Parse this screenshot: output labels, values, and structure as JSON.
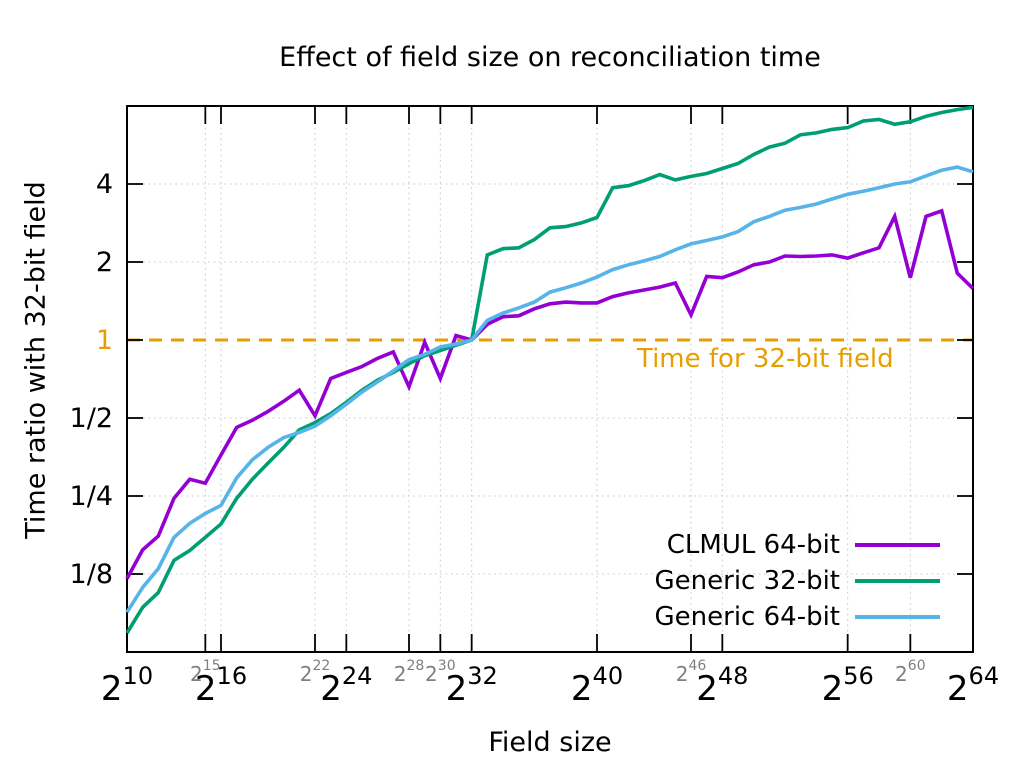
{
  "title": "Effect of field size on reconciliation time",
  "xlabel": "Field size",
  "ylabel": "Time ratio with 32-bit field",
  "chart_data": {
    "type": "line",
    "x_tick_base": "2",
    "x_exponents": [
      10,
      11,
      12,
      13,
      14,
      15,
      16,
      17,
      18,
      19,
      20,
      21,
      22,
      23,
      24,
      25,
      26,
      27,
      28,
      29,
      30,
      31,
      32,
      33,
      34,
      35,
      36,
      37,
      38,
      39,
      40,
      41,
      42,
      43,
      44,
      45,
      46,
      47,
      48,
      49,
      50,
      51,
      52,
      53,
      54,
      55,
      56,
      57,
      58,
      59,
      60,
      61,
      62,
      63,
      64
    ],
    "x_major_ticks": [
      10,
      16,
      24,
      32,
      40,
      48,
      56,
      64
    ],
    "x_minor_ticks": [
      15,
      22,
      28,
      30,
      46,
      60
    ],
    "xlim": [
      10,
      64
    ],
    "ylim": [
      0.0625,
      8
    ],
    "y_log": true,
    "grid": true,
    "legend_position": "inside-bottom-right",
    "y_ticks": [
      {
        "value": 4,
        "label": "4"
      },
      {
        "value": 2,
        "label": "2"
      },
      {
        "value": 1,
        "label": "1",
        "highlight": true
      },
      {
        "value": 0.5,
        "label": "1/2"
      },
      {
        "value": 0.25,
        "label": "1/4"
      },
      {
        "value": 0.125,
        "label": "1/8"
      }
    ],
    "reference_line": {
      "value": 1,
      "label": "Time for 32-bit field",
      "color": "#E69F00",
      "style": "dashed"
    },
    "series": [
      {
        "name": "CLMUL 64-bit",
        "color": "#9400D3",
        "values": [
          0.12,
          0.155,
          0.175,
          0.245,
          0.29,
          0.28,
          0.36,
          0.46,
          0.49,
          0.53,
          0.58,
          0.64,
          0.51,
          0.71,
          0.75,
          0.79,
          0.85,
          0.9,
          0.66,
          0.98,
          0.71,
          1.04,
          1.0,
          1.15,
          1.23,
          1.24,
          1.32,
          1.38,
          1.4,
          1.39,
          1.39,
          1.47,
          1.52,
          1.56,
          1.6,
          1.66,
          1.25,
          1.76,
          1.74,
          1.83,
          1.95,
          2.0,
          2.11,
          2.1,
          2.11,
          2.13,
          2.07,
          2.17,
          2.27,
          3.0,
          1.74,
          3.0,
          3.15,
          1.81,
          1.58
        ]
      },
      {
        "name": "Generic 32-bit",
        "color": "#009E73",
        "values": [
          0.074,
          0.093,
          0.106,
          0.141,
          0.154,
          0.173,
          0.195,
          0.245,
          0.29,
          0.335,
          0.385,
          0.45,
          0.48,
          0.52,
          0.575,
          0.64,
          0.7,
          0.75,
          0.81,
          0.87,
          0.91,
          0.955,
          1.0,
          2.13,
          2.25,
          2.27,
          2.44,
          2.71,
          2.74,
          2.83,
          2.97,
          3.87,
          3.94,
          4.12,
          4.35,
          4.15,
          4.28,
          4.39,
          4.59,
          4.8,
          5.2,
          5.55,
          5.75,
          6.2,
          6.3,
          6.5,
          6.6,
          7.0,
          7.1,
          6.8,
          6.95,
          7.3,
          7.55,
          7.75,
          7.9
        ]
      },
      {
        "name": "Generic 64-bit",
        "color": "#56B4E9",
        "values": [
          0.089,
          0.111,
          0.131,
          0.173,
          0.196,
          0.214,
          0.23,
          0.294,
          0.345,
          0.385,
          0.42,
          0.44,
          0.465,
          0.51,
          0.565,
          0.63,
          0.69,
          0.76,
          0.84,
          0.88,
          0.94,
          0.965,
          1.0,
          1.19,
          1.27,
          1.33,
          1.4,
          1.53,
          1.59,
          1.66,
          1.75,
          1.87,
          1.95,
          2.02,
          2.1,
          2.23,
          2.35,
          2.42,
          2.5,
          2.62,
          2.86,
          3.0,
          3.17,
          3.25,
          3.35,
          3.5,
          3.65,
          3.75,
          3.87,
          4.0,
          4.08,
          4.3,
          4.52,
          4.65,
          4.46
        ]
      }
    ]
  }
}
